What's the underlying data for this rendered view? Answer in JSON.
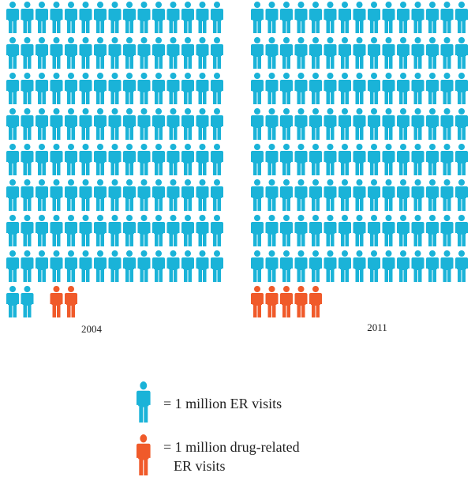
{
  "chart_data": {
    "type": "pictograph",
    "panels": [
      {
        "label": "2004",
        "er_visits": 122.5,
        "drug_related": 2.5
      },
      {
        "label": "2011",
        "er_visits": 120,
        "drug_related": 5
      }
    ],
    "legend": [
      {
        "lines": [
          "= 1 million ER visits"
        ],
        "color": "#1ab3d8"
      },
      {
        "lines": [
          "= 1 million drug-related",
          "ER visits"
        ],
        "color": "#f05a2a"
      }
    ]
  }
}
